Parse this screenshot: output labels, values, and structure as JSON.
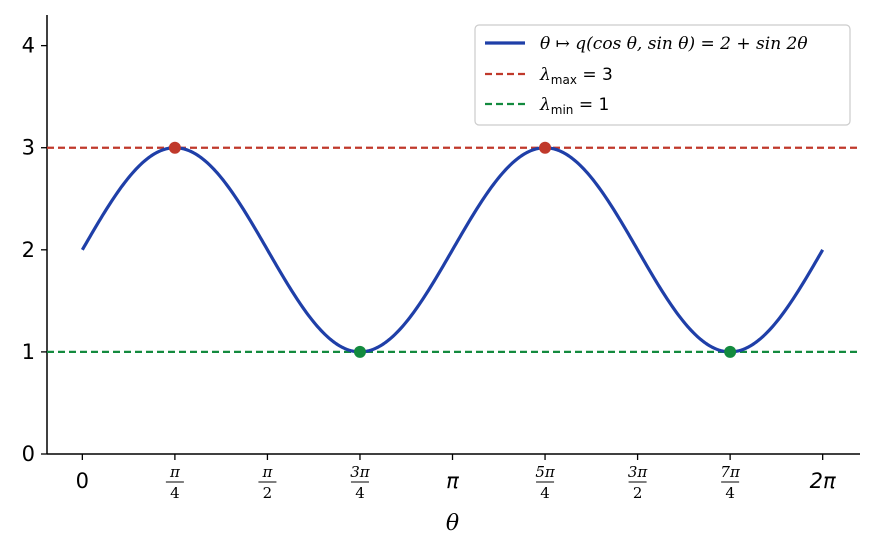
{
  "colors": {
    "curve": "#1f3fa8",
    "max": "#c0392b",
    "min": "#138a3e",
    "axis": "#000000",
    "background": "#ffffff"
  },
  "chart_data": {
    "type": "line",
    "xlabel": "θ",
    "ylabel": "",
    "title": "",
    "function": "2 + sin 2θ",
    "xlim": [
      -0.3,
      6.6
    ],
    "ylim": [
      0,
      4.3
    ],
    "yticks": [
      0,
      1,
      2,
      3,
      4
    ],
    "ytick_labels": [
      "0",
      "1",
      "2",
      "3",
      "4"
    ],
    "xticks": [
      {
        "value": 0,
        "num": "0",
        "den": ""
      },
      {
        "value": 0.7854,
        "num": "π",
        "den": "4"
      },
      {
        "value": 1.5708,
        "num": "π",
        "den": "2"
      },
      {
        "value": 2.3562,
        "num": "3π",
        "den": "4"
      },
      {
        "value": 3.1416,
        "num": "π",
        "den": ""
      },
      {
        "value": 3.927,
        "num": "5π",
        "den": "4"
      },
      {
        "value": 4.7124,
        "num": "3π",
        "den": "2"
      },
      {
        "value": 5.4978,
        "num": "7π",
        "den": "4"
      },
      {
        "value": 6.2832,
        "num": "2π",
        "den": ""
      }
    ],
    "series": [
      {
        "name": "θ ↦ q(cos θ, sin θ) = 2 + sin 2θ",
        "style": "solid",
        "x_range": [
          0,
          6.2832
        ]
      },
      {
        "name": "λmax = 3",
        "style": "dashed",
        "y": 3
      },
      {
        "name": "λmin = 1",
        "style": "dashed",
        "y": 1
      }
    ],
    "max_points": [
      [
        0.7854,
        3
      ],
      [
        3.927,
        3
      ]
    ],
    "min_points": [
      [
        2.3562,
        1
      ],
      [
        5.4978,
        1
      ]
    ],
    "grid": false,
    "legend_position": "top-right"
  },
  "legend": {
    "curve_prefix": "θ ↦ ",
    "curve_formula": "q(cos θ, sin θ) = 2 + sin 2θ",
    "max_symbol": "λ",
    "max_sub": "max",
    "max_rest": " = 3",
    "min_symbol": "λ",
    "min_sub": "min",
    "min_rest": " = 1"
  }
}
